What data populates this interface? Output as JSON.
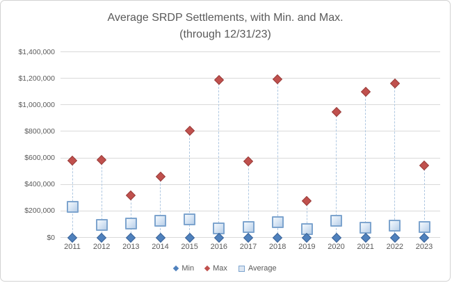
{
  "title": "Average SRDP Settlements, with Min. and Max.",
  "subtitle": "(through 12/31/23)",
  "colors": {
    "min_fill": "#4f81bd",
    "min_border": "#3a6398",
    "max_fill": "#c0504d",
    "max_border": "#993d3a",
    "avg_border": "#7da4ce",
    "avg_fill": "#dce6f2",
    "dropline": "#aec7e1",
    "gridline": "#d9d9d9",
    "text": "#595959"
  },
  "legend": [
    {
      "label": "Min",
      "marker": "diamond",
      "color": "#4f81bd"
    },
    {
      "label": "Max",
      "marker": "diamond",
      "color": "#c0504d"
    },
    {
      "label": "Average",
      "marker": "square",
      "color": "#dce6f2"
    }
  ],
  "chart_data": {
    "type": "scatter",
    "title": "Average SRDP Settlements, with Min. and Max. (through 12/31/23)",
    "categories": [
      "2011",
      "2012",
      "2013",
      "2014",
      "2015",
      "2016",
      "2017",
      "2018",
      "2019",
      "2020",
      "2021",
      "2022",
      "2023"
    ],
    "series": [
      {
        "name": "Min",
        "values": [
          0,
          0,
          0,
          0,
          0,
          0,
          0,
          0,
          0,
          0,
          0,
          0,
          0
        ]
      },
      {
        "name": "Max",
        "values": [
          580000,
          585000,
          315000,
          460000,
          805000,
          1190000,
          575000,
          1195000,
          275000,
          945000,
          1100000,
          1160000,
          545000
        ]
      },
      {
        "name": "Average",
        "values": [
          230000,
          95000,
          105000,
          125000,
          135000,
          70000,
          80000,
          115000,
          65000,
          125000,
          75000,
          90000,
          80000
        ]
      }
    ],
    "y_ticks": [
      {
        "label": "$0",
        "value": 0
      },
      {
        "label": "$200,000",
        "value": 200000
      },
      {
        "label": "$400,000",
        "value": 400000
      },
      {
        "label": "$600,000",
        "value": 600000
      },
      {
        "label": "$800,000",
        "value": 800000
      },
      {
        "label": "$1,000,000",
        "value": 1000000
      },
      {
        "label": "$1,200,000",
        "value": 1200000
      },
      {
        "label": "$1,400,000",
        "value": 1400000
      }
    ],
    "ylim": [
      0,
      1400000
    ],
    "xlabel": "",
    "ylabel": "",
    "grid": "horizontal",
    "legend_position": "bottom",
    "high_low_lines": true
  }
}
